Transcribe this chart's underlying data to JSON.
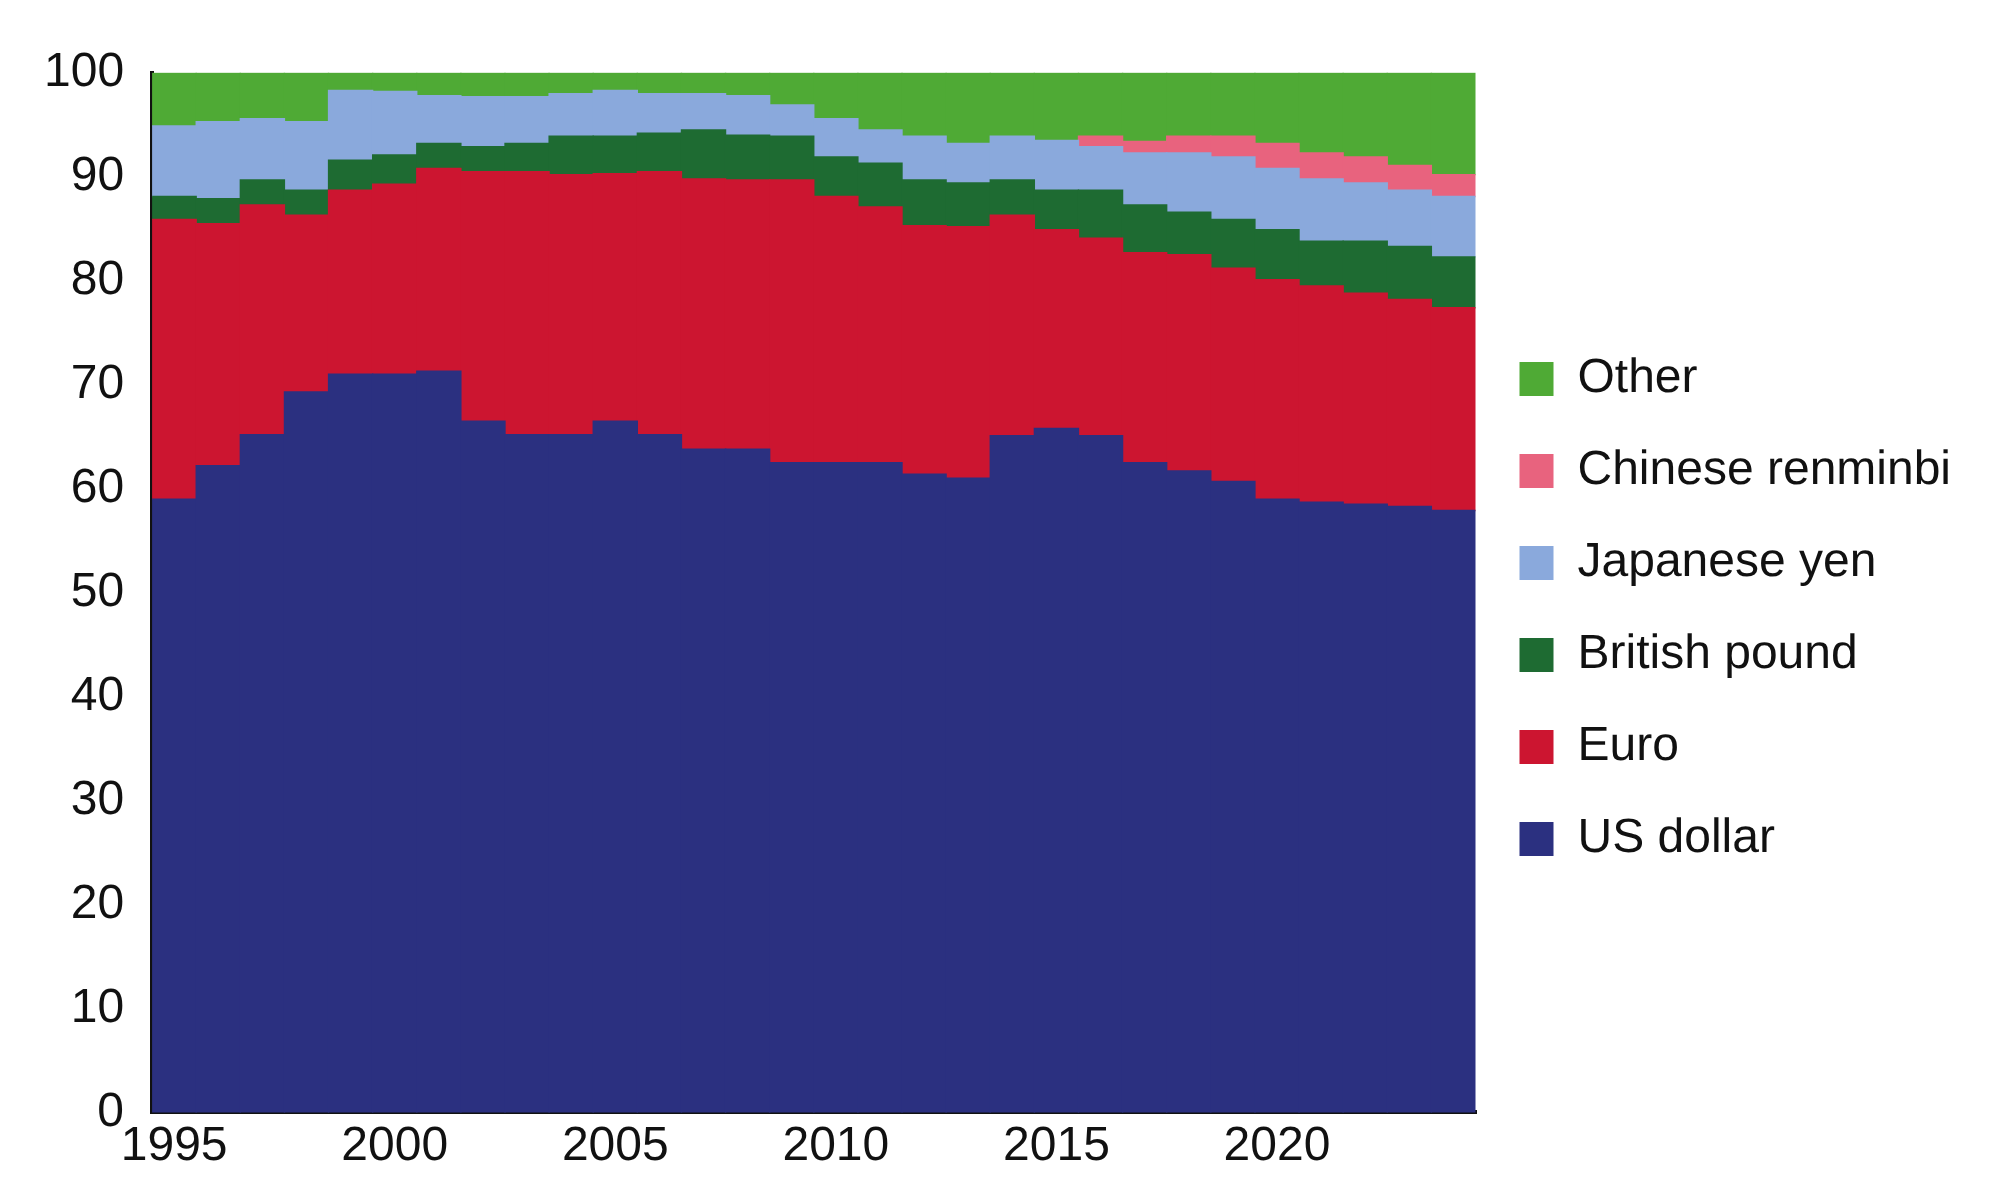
{
  "chart_data": {
    "type": "bar",
    "stacked": true,
    "categories": [
      "1995",
      null,
      null,
      null,
      null,
      "2000",
      null,
      null,
      null,
      null,
      "2005",
      null,
      null,
      null,
      null,
      "2010",
      null,
      null,
      null,
      null,
      "2015",
      null,
      null,
      null,
      null,
      "2020",
      null,
      null,
      null,
      null
    ],
    "series": [
      {
        "name": "US dollar",
        "color": "#2b3080",
        "values": [
          59.0,
          62.2,
          65.2,
          69.3,
          71.0,
          71.0,
          71.3,
          66.5,
          65.2,
          65.2,
          66.5,
          65.2,
          63.8,
          63.8,
          62.5,
          62.5,
          62.5,
          61.4,
          61.0,
          65.1,
          65.8,
          65.1,
          62.5,
          61.7,
          60.7,
          59.0,
          58.7,
          58.5,
          58.3,
          57.9
        ]
      },
      {
        "name": "Euro",
        "color": "#cc1530",
        "values": [
          26.9,
          23.3,
          22.1,
          17.0,
          17.7,
          18.3,
          19.5,
          24.0,
          25.3,
          25.0,
          23.8,
          25.3,
          26.0,
          25.9,
          27.2,
          25.6,
          24.6,
          23.9,
          24.2,
          21.2,
          19.1,
          19.0,
          20.2,
          20.8,
          20.5,
          21.1,
          20.8,
          20.3,
          19.9,
          19.5
        ]
      },
      {
        "name": "British pound",
        "color": "#1e6b32",
        "values": [
          2.2,
          2.4,
          2.4,
          2.4,
          2.9,
          2.8,
          2.4,
          2.4,
          2.7,
          3.7,
          3.6,
          3.7,
          4.7,
          4.3,
          4.2,
          3.8,
          4.2,
          4.4,
          4.2,
          3.4,
          3.8,
          4.6,
          4.6,
          4.1,
          4.7,
          4.8,
          4.3,
          5.0,
          5.1,
          4.9
        ]
      },
      {
        "name": "Japanese yen",
        "color": "#8aa9dc",
        "values": [
          6.8,
          7.4,
          5.9,
          6.6,
          6.7,
          6.1,
          4.6,
          4.8,
          4.5,
          4.1,
          4.4,
          3.8,
          3.5,
          3.8,
          3.0,
          3.7,
          3.2,
          4.2,
          3.8,
          4.2,
          4.8,
          4.2,
          5.0,
          5.7,
          6.0,
          5.9,
          6.0,
          5.6,
          5.4,
          5.8
        ]
      },
      {
        "name": "Chinese renminbi",
        "color": "#e8637e",
        "values": [
          null,
          null,
          null,
          null,
          null,
          null,
          null,
          null,
          null,
          null,
          null,
          null,
          null,
          null,
          null,
          null,
          null,
          null,
          null,
          null,
          null,
          1.0,
          1.1,
          1.6,
          2.0,
          2.4,
          2.5,
          2.5,
          2.4,
          2.1
        ]
      },
      {
        "name": "Other",
        "color": "#4faa35",
        "values": [
          5.1,
          4.7,
          4.4,
          4.7,
          1.7,
          1.8,
          2.2,
          2.3,
          2.3,
          2.0,
          1.7,
          2.0,
          2.0,
          2.2,
          3.1,
          4.4,
          5.5,
          6.1,
          6.8,
          6.1,
          6.5,
          6.1,
          6.6,
          6.1,
          6.1,
          6.8,
          7.7,
          8.1,
          8.9,
          9.8
        ]
      }
    ],
    "ylim": [
      0,
      100
    ],
    "yticks": [
      0,
      10,
      20,
      30,
      40,
      50,
      60,
      70,
      80,
      90,
      100
    ],
    "grid": false,
    "legend": "right"
  }
}
